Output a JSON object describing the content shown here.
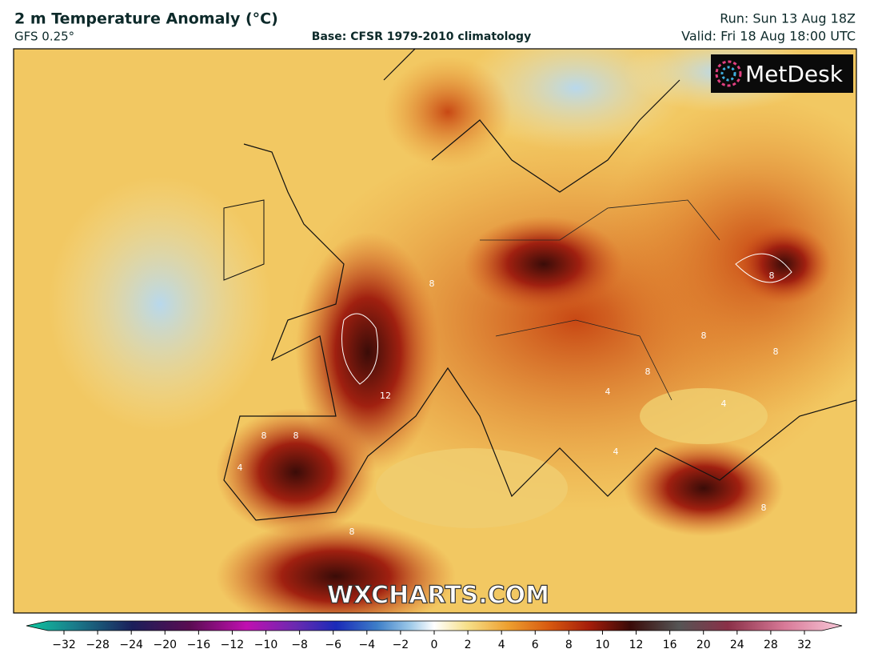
{
  "header": {
    "title": "2 m Temperature Anomaly (°C)",
    "model": "GFS 0.25°",
    "base": "Base: CFSR 1979-2010 climatology",
    "run": "Run: Sun 13 Aug 18Z",
    "valid": "Valid: Fri 18 Aug 18:00 UTC"
  },
  "logo": "MetDesk",
  "watermark": "WXCHARTS.COM",
  "map": {
    "contour_labels": [
      "8",
      "8",
      "8",
      "4",
      "4",
      "8",
      "12",
      "8",
      "8",
      "4",
      "8",
      "8",
      "4",
      "8"
    ]
  },
  "colorbar": {
    "ticks": [
      {
        "value": -32,
        "label": "−32"
      },
      {
        "value": -28,
        "label": "−28"
      },
      {
        "value": -24,
        "label": "−24"
      },
      {
        "value": -20,
        "label": "−20"
      },
      {
        "value": -16,
        "label": "−16"
      },
      {
        "value": -12,
        "label": "−12"
      },
      {
        "value": -10,
        "label": "−10"
      },
      {
        "value": -8,
        "label": "−8"
      },
      {
        "value": -6,
        "label": "−6"
      },
      {
        "value": -4,
        "label": "−4"
      },
      {
        "value": -2,
        "label": "−2"
      },
      0,
      2,
      4,
      6,
      8,
      10,
      12,
      16,
      20,
      24,
      28,
      32
    ]
  }
}
